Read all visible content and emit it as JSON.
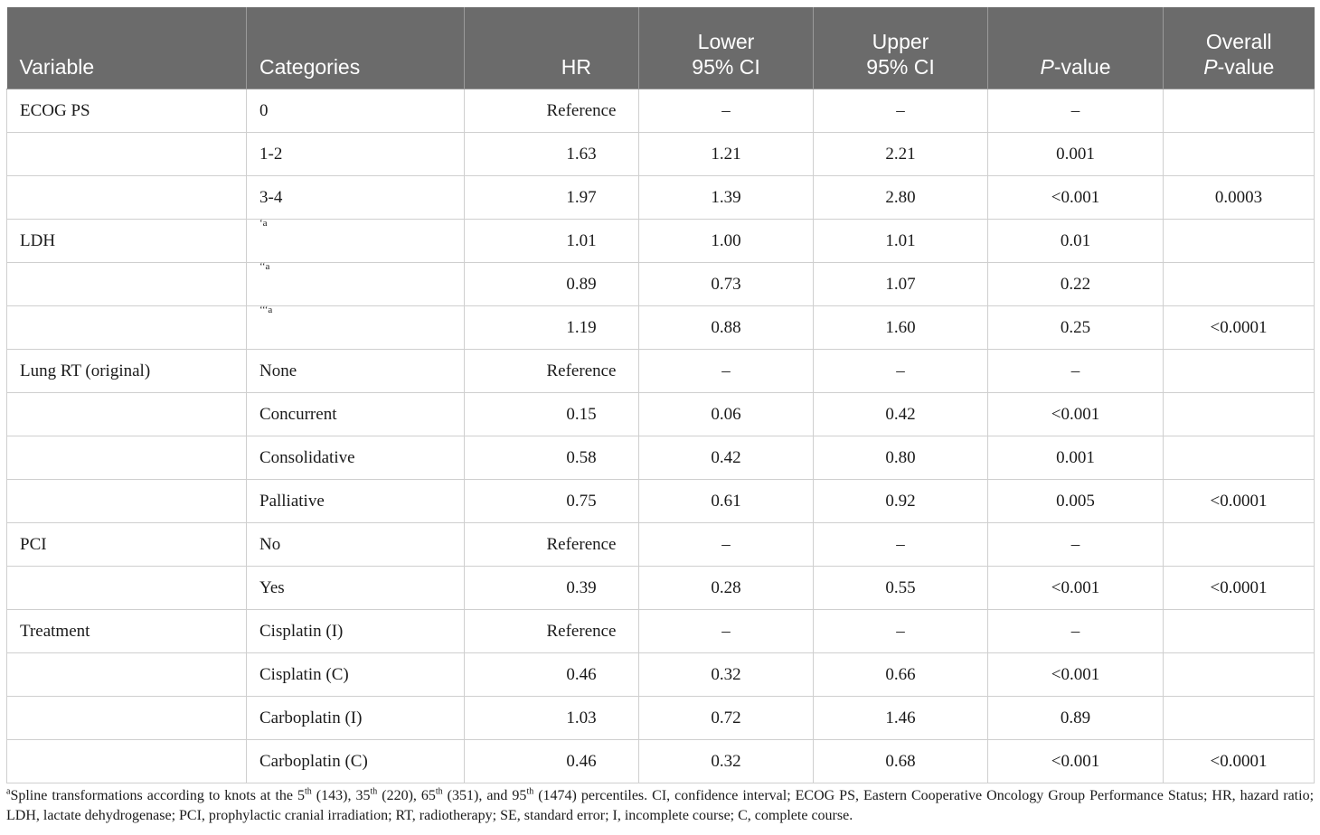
{
  "table": {
    "headers": {
      "variable": "Variable",
      "categories": "Categories",
      "hr": "HR",
      "lower_1": "Lower",
      "lower_2": "95% CI",
      "upper_1": "Upper",
      "upper_2": "95% CI",
      "pvalue_italic": "P",
      "pvalue_rest": "-value",
      "overall_1": "Overall",
      "overall_italic": "P",
      "overall_rest": "-value"
    },
    "rows": [
      {
        "variable": "ECOG PS",
        "category": "0",
        "hr": "Reference",
        "lower": "–",
        "upper": "–",
        "p": "–",
        "overall": ""
      },
      {
        "variable": "",
        "category": "1-2",
        "hr": "1.63",
        "lower": "1.21",
        "upper": "2.21",
        "p": "0.001",
        "overall": ""
      },
      {
        "variable": "",
        "category": "3-4",
        "hr": "1.97",
        "lower": "1.39",
        "upper": "2.80",
        "p": "<0.001",
        "overall": "0.0003"
      },
      {
        "variable": "LDH",
        "category": "‘a",
        "hr": "1.01",
        "lower": "1.00",
        "upper": "1.01",
        "p": "0.01",
        "overall": ""
      },
      {
        "variable": "",
        "category": "‘‘a",
        "hr": "0.89",
        "lower": "0.73",
        "upper": "1.07",
        "p": "0.22",
        "overall": ""
      },
      {
        "variable": "",
        "category": "‘‘‘a",
        "hr": "1.19",
        "lower": "0.88",
        "upper": "1.60",
        "p": "0.25",
        "overall": "<0.0001"
      },
      {
        "variable": "Lung RT (original)",
        "category": "None",
        "hr": "Reference",
        "lower": "–",
        "upper": "–",
        "p": "–",
        "overall": ""
      },
      {
        "variable": "",
        "category": "Concurrent",
        "hr": "0.15",
        "lower": "0.06",
        "upper": "0.42",
        "p": "<0.001",
        "overall": ""
      },
      {
        "variable": "",
        "category": "Consolidative",
        "hr": "0.58",
        "lower": "0.42",
        "upper": "0.80",
        "p": "0.001",
        "overall": ""
      },
      {
        "variable": "",
        "category": "Palliative",
        "hr": "0.75",
        "lower": "0.61",
        "upper": "0.92",
        "p": "0.005",
        "overall": "<0.0001"
      },
      {
        "variable": "PCI",
        "category": "No",
        "hr": "Reference",
        "lower": "–",
        "upper": "–",
        "p": "–",
        "overall": ""
      },
      {
        "variable": "",
        "category": "Yes",
        "hr": "0.39",
        "lower": "0.28",
        "upper": "0.55",
        "p": "<0.001",
        "overall": "<0.0001"
      },
      {
        "variable": "Treatment",
        "category": "Cisplatin (I)",
        "hr": "Reference",
        "lower": "–",
        "upper": "–",
        "p": "–",
        "overall": ""
      },
      {
        "variable": "",
        "category": "Cisplatin (C)",
        "hr": "0.46",
        "lower": "0.32",
        "upper": "0.66",
        "p": "<0.001",
        "overall": ""
      },
      {
        "variable": "",
        "category": "Carboplatin (I)",
        "hr": "1.03",
        "lower": "0.72",
        "upper": "1.46",
        "p": "0.89",
        "overall": ""
      },
      {
        "variable": "",
        "category": "Carboplatin (C)",
        "hr": "0.46",
        "lower": "0.32",
        "upper": "0.68",
        "p": "<0.001",
        "overall": "<0.0001"
      }
    ]
  },
  "footnote": {
    "marker": "a",
    "part1": "Spline transformations according to knots at the 5",
    "sup1": "th",
    "part2": " (143), 35",
    "sup2": "th",
    "part3": " (220), 65",
    "sup3": "th",
    "part4": " (351), and 95",
    "sup4": "th",
    "part5": " (1474) percentiles. CI, confidence interval; ECOG PS, Eastern Cooperative Oncology Group Performance Status; HR, hazard ratio; LDH, lactate dehydrogenase; PCI, prophylactic cranial irradiation; RT, radiotherapy; SE, standard error; I, incomplete course; C, complete course."
  }
}
